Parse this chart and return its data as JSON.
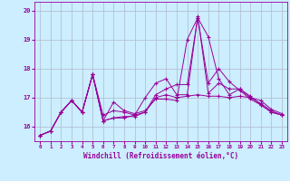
{
  "xlabel": "Windchill (Refroidissement éolien,°C)",
  "background_color": "#cceeff",
  "line_color": "#990099",
  "grid_color": "#b0b8cc",
  "xlim": [
    -0.5,
    23.5
  ],
  "ylim": [
    15.5,
    20.3
  ],
  "xticks": [
    0,
    1,
    2,
    3,
    4,
    5,
    6,
    7,
    8,
    9,
    10,
    11,
    12,
    13,
    14,
    15,
    16,
    17,
    18,
    19,
    20,
    21,
    22,
    23
  ],
  "yticks": [
    16,
    17,
    18,
    19,
    20
  ],
  "lines": [
    [
      15.7,
      15.85,
      16.5,
      16.9,
      16.5,
      17.8,
      16.4,
      16.55,
      16.5,
      16.4,
      16.5,
      17.0,
      17.1,
      17.0,
      17.05,
      17.1,
      17.05,
      17.05,
      17.0,
      17.05,
      17.0,
      16.9,
      16.6,
      16.45
    ],
    [
      15.7,
      15.85,
      16.5,
      16.9,
      16.5,
      17.8,
      16.2,
      16.3,
      16.3,
      16.4,
      17.0,
      17.5,
      17.65,
      17.1,
      17.1,
      19.8,
      17.15,
      17.5,
      17.3,
      17.3,
      17.0,
      16.8,
      16.55,
      16.4
    ],
    [
      15.7,
      15.85,
      16.5,
      16.9,
      16.5,
      17.8,
      16.2,
      16.85,
      16.55,
      16.45,
      16.55,
      16.95,
      16.95,
      16.9,
      19.0,
      19.75,
      19.1,
      17.65,
      17.1,
      17.3,
      17.05,
      16.75,
      16.5,
      16.4
    ],
    [
      15.7,
      15.85,
      16.5,
      16.9,
      16.5,
      17.8,
      16.2,
      16.3,
      16.35,
      16.35,
      16.5,
      17.1,
      17.3,
      17.45,
      17.45,
      19.75,
      17.5,
      18.0,
      17.55,
      17.25,
      16.95,
      16.75,
      16.5,
      16.4
    ]
  ]
}
